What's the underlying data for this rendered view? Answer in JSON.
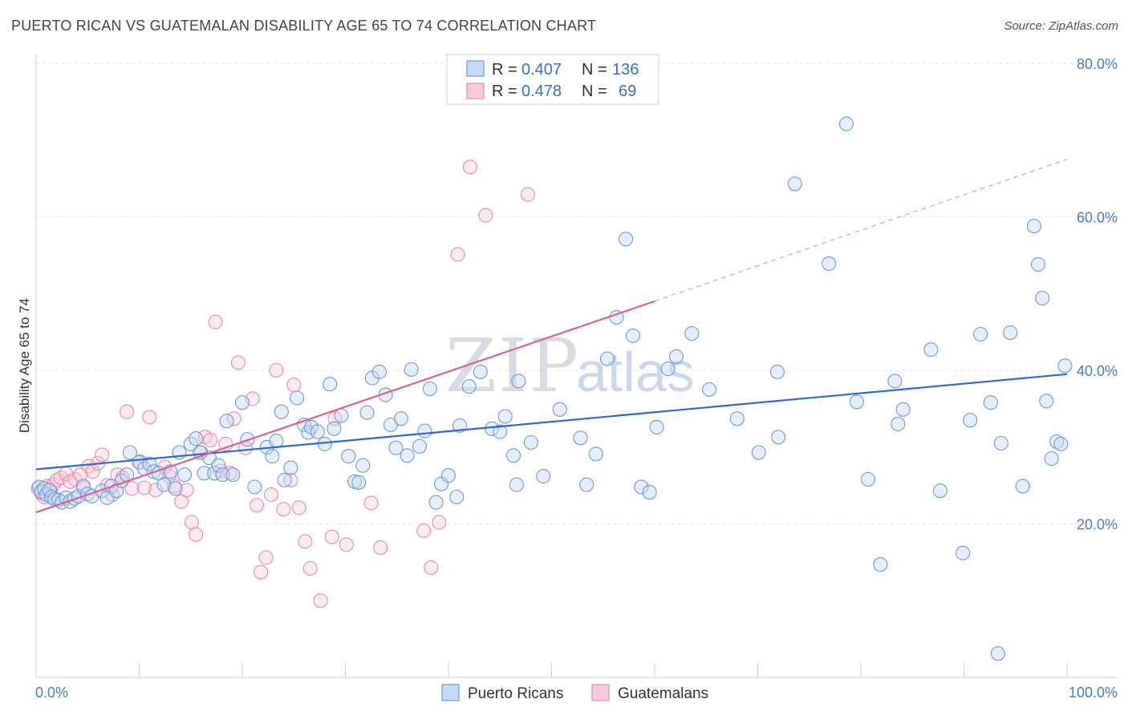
{
  "header": {
    "title": "PUERTO RICAN VS GUATEMALAN DISABILITY AGE 65 TO 74 CORRELATION CHART",
    "source": "Source: ZipAtlas.com"
  },
  "watermark": {
    "zip": "ZIP",
    "atlas": "atlas"
  },
  "legend": {
    "r_label": "R =",
    "n_label": "N =",
    "rows": [
      {
        "r": "0.407",
        "n": "136",
        "color": "#6a9bdc"
      },
      {
        "r": "0.478",
        "n": "69",
        "color": "#e88aa8"
      }
    ]
  },
  "bottom_legend": {
    "series0": "Puerto Ricans",
    "series1": "Guatemalans"
  },
  "chart_data": {
    "type": "scatter",
    "title": "PUERTO RICAN VS GUATEMALAN DISABILITY AGE 65 TO 74 CORRELATION CHART",
    "xlabel": "",
    "ylabel": "Disability Age 65 to 74",
    "xlim": [
      0,
      100
    ],
    "ylim": [
      0,
      80
    ],
    "x_tick_labels": [
      "0.0%",
      "100.0%"
    ],
    "y_tick_labels": [
      "20.0%",
      "40.0%",
      "60.0%",
      "80.0%"
    ],
    "y_ticks": [
      20,
      40,
      60,
      80
    ],
    "grid": true,
    "legend_position": "top-center",
    "series": [
      {
        "name": "Puerto Ricans",
        "color": "#6a9bdc",
        "r": 0.407,
        "n": 136,
        "trend": {
          "x0": 0,
          "y0": 27.1,
          "x1": 100,
          "y1": 39.5
        },
        "points": [
          [
            0.3,
            24.8
          ],
          [
            0.5,
            24.2
          ],
          [
            0.8,
            24.6
          ],
          [
            1.0,
            23.8
          ],
          [
            1.3,
            24.4
          ],
          [
            1.5,
            23.5
          ],
          [
            1.8,
            23.2
          ],
          [
            2.2,
            23.1
          ],
          [
            2.5,
            22.8
          ],
          [
            2.9,
            23.4
          ],
          [
            3.3,
            22.9
          ],
          [
            3.7,
            23.3
          ],
          [
            4.1,
            23.6
          ],
          [
            4.6,
            24.9
          ],
          [
            5.0,
            23.9
          ],
          [
            5.4,
            23.6
          ],
          [
            6.4,
            24.3
          ],
          [
            6.9,
            23.4
          ],
          [
            7.3,
            24.9
          ],
          [
            7.8,
            24.3
          ],
          [
            8.3,
            25.6
          ],
          [
            8.8,
            26.4
          ],
          [
            9.1,
            29.3
          ],
          [
            10.0,
            28.0
          ],
          [
            10.5,
            27.2
          ],
          [
            11.0,
            27.8
          ],
          [
            11.4,
            26.8
          ],
          [
            11.9,
            26.6
          ],
          [
            12.4,
            25.1
          ],
          [
            13.0,
            26.8
          ],
          [
            13.5,
            24.6
          ],
          [
            13.9,
            29.3
          ],
          [
            14.4,
            26.4
          ],
          [
            15.0,
            30.4
          ],
          [
            15.5,
            31.1
          ],
          [
            15.9,
            29.3
          ],
          [
            16.3,
            26.6
          ],
          [
            16.8,
            28.6
          ],
          [
            17.3,
            26.6
          ],
          [
            17.7,
            27.6
          ],
          [
            18.1,
            26.4
          ],
          [
            18.5,
            33.4
          ],
          [
            19.1,
            26.4
          ],
          [
            20.0,
            35.8
          ],
          [
            20.5,
            31.0
          ],
          [
            21.2,
            24.8
          ],
          [
            22.4,
            30.0
          ],
          [
            22.9,
            28.8
          ],
          [
            23.3,
            30.8
          ],
          [
            23.8,
            34.6
          ],
          [
            24.1,
            25.7
          ],
          [
            24.7,
            27.3
          ],
          [
            25.3,
            36.4
          ],
          [
            26.0,
            32.9
          ],
          [
            26.4,
            31.9
          ],
          [
            26.7,
            32.6
          ],
          [
            27.3,
            32.0
          ],
          [
            28.0,
            30.4
          ],
          [
            28.5,
            38.2
          ],
          [
            28.9,
            32.4
          ],
          [
            29.6,
            34.1
          ],
          [
            30.3,
            28.8
          ],
          [
            30.9,
            25.5
          ],
          [
            31.3,
            25.4
          ],
          [
            31.7,
            27.6
          ],
          [
            32.1,
            34.5
          ],
          [
            32.6,
            39.0
          ],
          [
            33.3,
            39.8
          ],
          [
            33.9,
            36.8
          ],
          [
            34.4,
            32.9
          ],
          [
            34.9,
            29.9
          ],
          [
            35.4,
            33.7
          ],
          [
            36.0,
            28.9
          ],
          [
            36.4,
            40.1
          ],
          [
            37.2,
            30.1
          ],
          [
            37.7,
            32.1
          ],
          [
            38.2,
            37.6
          ],
          [
            38.8,
            22.8
          ],
          [
            39.3,
            25.2
          ],
          [
            40.0,
            26.3
          ],
          [
            40.8,
            23.5
          ],
          [
            41.1,
            32.8
          ],
          [
            42.0,
            37.9
          ],
          [
            43.1,
            39.8
          ],
          [
            44.2,
            32.4
          ],
          [
            45.0,
            32.0
          ],
          [
            45.5,
            34.0
          ],
          [
            46.3,
            28.9
          ],
          [
            46.6,
            25.1
          ],
          [
            46.8,
            38.6
          ],
          [
            48.0,
            30.6
          ],
          [
            49.2,
            26.2
          ],
          [
            50.8,
            34.9
          ],
          [
            52.8,
            31.2
          ],
          [
            53.4,
            25.1
          ],
          [
            54.3,
            29.1
          ],
          [
            55.4,
            41.5
          ],
          [
            56.3,
            46.9
          ],
          [
            57.2,
            57.1
          ],
          [
            57.9,
            44.5
          ],
          [
            58.7,
            24.8
          ],
          [
            59.5,
            24.1
          ],
          [
            60.2,
            32.6
          ],
          [
            61.3,
            40.2
          ],
          [
            62.1,
            41.8
          ],
          [
            63.6,
            44.8
          ],
          [
            65.3,
            37.5
          ],
          [
            68.0,
            33.7
          ],
          [
            70.1,
            29.3
          ],
          [
            71.9,
            39.8
          ],
          [
            72.0,
            31.3
          ],
          [
            73.6,
            64.3
          ],
          [
            76.9,
            53.9
          ],
          [
            78.6,
            72.1
          ],
          [
            79.6,
            35.9
          ],
          [
            80.7,
            25.8
          ],
          [
            81.9,
            14.7
          ],
          [
            83.3,
            38.6
          ],
          [
            83.6,
            33.0
          ],
          [
            84.1,
            34.9
          ],
          [
            86.8,
            42.7
          ],
          [
            87.7,
            24.3
          ],
          [
            89.9,
            16.2
          ],
          [
            90.6,
            33.5
          ],
          [
            91.6,
            44.7
          ],
          [
            92.6,
            35.8
          ],
          [
            93.3,
            3.1
          ],
          [
            93.6,
            30.5
          ],
          [
            94.5,
            44.9
          ],
          [
            95.7,
            24.9
          ],
          [
            96.8,
            58.8
          ],
          [
            97.2,
            53.8
          ],
          [
            97.6,
            49.4
          ],
          [
            98.0,
            36.0
          ],
          [
            98.5,
            28.5
          ],
          [
            99.0,
            30.7
          ],
          [
            99.4,
            30.4
          ],
          [
            99.8,
            40.6
          ]
        ]
      },
      {
        "name": "Guatemalans",
        "color": "#e88aa8",
        "r": 0.478,
        "n": 69,
        "trend": {
          "x0": 0,
          "y0": 21.5,
          "x1": 60,
          "y1": 49.0,
          "dash_x1": 100,
          "dash_y1": 67.5
        },
        "points": [
          [
            0.2,
            24.6
          ],
          [
            0.5,
            24.0
          ],
          [
            0.8,
            23.5
          ],
          [
            1.1,
            24.9
          ],
          [
            1.4,
            24.3
          ],
          [
            1.7,
            25.1
          ],
          [
            2.0,
            25.7
          ],
          [
            2.4,
            26.0
          ],
          [
            2.9,
            26.5
          ],
          [
            3.3,
            25.5
          ],
          [
            3.8,
            25.8
          ],
          [
            4.3,
            26.4
          ],
          [
            4.6,
            24.7
          ],
          [
            5.1,
            27.5
          ],
          [
            5.5,
            26.8
          ],
          [
            6.0,
            27.9
          ],
          [
            6.4,
            29.0
          ],
          [
            6.9,
            25.0
          ],
          [
            7.4,
            23.8
          ],
          [
            7.9,
            26.4
          ],
          [
            8.4,
            26.0
          ],
          [
            8.8,
            34.6
          ],
          [
            9.3,
            24.6
          ],
          [
            10.1,
            28.1
          ],
          [
            10.5,
            24.7
          ],
          [
            11.0,
            33.9
          ],
          [
            11.6,
            24.4
          ],
          [
            12.5,
            27.4
          ],
          [
            12.9,
            26.2
          ],
          [
            13.4,
            24.9
          ],
          [
            14.1,
            22.9
          ],
          [
            14.6,
            24.4
          ],
          [
            15.1,
            20.2
          ],
          [
            15.5,
            18.6
          ],
          [
            16.0,
            29.3
          ],
          [
            16.4,
            31.3
          ],
          [
            16.9,
            30.9
          ],
          [
            17.4,
            46.3
          ],
          [
            17.9,
            26.9
          ],
          [
            18.4,
            30.4
          ],
          [
            18.8,
            26.6
          ],
          [
            19.2,
            33.7
          ],
          [
            19.6,
            41.0
          ],
          [
            20.3,
            29.9
          ],
          [
            21.0,
            36.3
          ],
          [
            21.4,
            22.4
          ],
          [
            21.8,
            13.7
          ],
          [
            22.3,
            15.6
          ],
          [
            22.8,
            23.8
          ],
          [
            23.3,
            40.0
          ],
          [
            24.0,
            21.9
          ],
          [
            24.7,
            25.7
          ],
          [
            25.0,
            38.1
          ],
          [
            25.5,
            22.1
          ],
          [
            26.1,
            17.7
          ],
          [
            26.6,
            14.2
          ],
          [
            27.6,
            10.0
          ],
          [
            28.7,
            18.3
          ],
          [
            29.0,
            33.7
          ],
          [
            30.1,
            17.3
          ],
          [
            32.5,
            22.7
          ],
          [
            33.4,
            16.9
          ],
          [
            37.6,
            19.1
          ],
          [
            38.3,
            14.3
          ],
          [
            39.1,
            20.2
          ],
          [
            40.9,
            55.1
          ],
          [
            42.1,
            66.5
          ],
          [
            43.6,
            60.2
          ],
          [
            47.7,
            62.9
          ]
        ]
      }
    ]
  }
}
